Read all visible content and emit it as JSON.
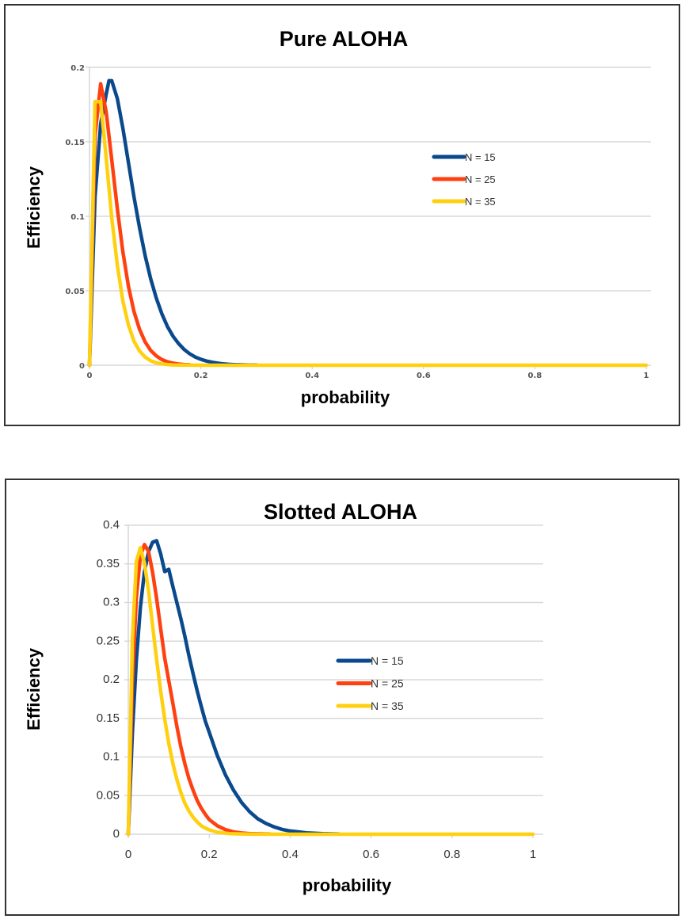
{
  "colors": {
    "n15": "#0a4a8c",
    "n25": "#ff4010",
    "n35": "#ffd010",
    "grid": "#d8d8d8"
  },
  "chart_data": [
    {
      "type": "line",
      "title": "Pure ALOHA",
      "xlabel": "probability",
      "ylabel": "Efficiency",
      "xlim": [
        0,
        1
      ],
      "ylim": [
        0,
        0.2
      ],
      "xticks": [
        "0",
        "0.2",
        "0.4",
        "0.6",
        "0.8",
        "1"
      ],
      "xtick_values": [
        0,
        0.2,
        0.4,
        0.6,
        0.8,
        1
      ],
      "yticks": [
        "0",
        "0.05",
        "0.1",
        "0.15",
        "0.2"
      ],
      "ytick_values": [
        0,
        0.05,
        0.1,
        0.15,
        0.2
      ],
      "grid": true,
      "legend": "right",
      "series": [
        {
          "name": "N = 15",
          "color_key": "n15",
          "x": [
            0,
            0.01,
            0.02,
            0.03,
            0.035,
            0.04,
            0.05,
            0.06,
            0.07,
            0.08,
            0.09,
            0.1,
            0.11,
            0.12,
            0.13,
            0.14,
            0.15,
            0.16,
            0.17,
            0.18,
            0.19,
            0.2,
            0.21,
            0.22,
            0.23,
            0.24,
            0.25,
            0.26,
            0.27,
            0.28,
            0.29,
            0.3
          ],
          "y": [
            0,
            0.113,
            0.162,
            0.182,
            0.191,
            0.191,
            0.179,
            0.159,
            0.136,
            0.113,
            0.092,
            0.0735,
            0.058,
            0.045,
            0.0345,
            0.026,
            0.0195,
            0.0145,
            0.0106,
            0.0077,
            0.0055,
            0.004,
            0.0028,
            0.002,
            0.0014,
            0.0009,
            0.0006,
            0.0004,
            0.0003,
            0.0002,
            0.0001,
            0.0001
          ]
        },
        {
          "name": "N = 25",
          "color_key": "n25",
          "x": [
            0,
            0.01,
            0.02,
            0.03,
            0.04,
            0.05,
            0.06,
            0.07,
            0.08,
            0.09,
            0.1,
            0.11,
            0.12,
            0.13,
            0.14,
            0.15,
            0.16,
            0.17,
            0.18
          ],
          "y": [
            0,
            0.154,
            0.189,
            0.17,
            0.138,
            0.105,
            0.076,
            0.053,
            0.036,
            0.024,
            0.0156,
            0.0099,
            0.0062,
            0.0038,
            0.0023,
            0.0014,
            0.0008,
            0.0005,
            0.0003
          ]
        },
        {
          "name": "N = 35",
          "color_key": "n35",
          "x": [
            0,
            0.01,
            0.02,
            0.03,
            0.04,
            0.05,
            0.06,
            0.07,
            0.08,
            0.09,
            0.1,
            0.11,
            0.12,
            0.13,
            0.14,
            0.15,
            0.2,
            0.4,
            0.6,
            0.8,
            1
          ],
          "y": [
            0,
            0.177,
            0.177,
            0.139,
            0.099,
            0.067,
            0.043,
            0.027,
            0.016,
            0.0095,
            0.0054,
            0.003,
            0.0016,
            0.0009,
            0.0005,
            0.0002,
            0,
            0,
            0,
            0,
            0
          ]
        }
      ]
    },
    {
      "type": "line",
      "title": "Slotted ALOHA",
      "xlabel": "probability",
      "ylabel": "Efficiency",
      "xlim": [
        0,
        1
      ],
      "ylim": [
        0,
        0.4
      ],
      "xticks": [
        "0",
        "0.2",
        "0.4",
        "0.6",
        "0.8",
        "1"
      ],
      "xtick_values": [
        0,
        0.2,
        0.4,
        0.6,
        0.8,
        1
      ],
      "yticks": [
        "0",
        "0.05",
        "0.1",
        "0.15",
        "0.2",
        "0.25",
        "0.3",
        "0.35",
        "0.4"
      ],
      "ytick_values": [
        0,
        0.05,
        0.1,
        0.15,
        0.2,
        0.25,
        0.3,
        0.35,
        0.4
      ],
      "grid": true,
      "legend": "right",
      "series": [
        {
          "name": "N = 15",
          "color_key": "n15",
          "x": [
            0,
            0.01,
            0.02,
            0.03,
            0.04,
            0.05,
            0.06,
            0.07,
            0.08,
            0.09,
            0.1,
            0.11,
            0.12,
            0.13,
            0.14,
            0.15,
            0.16,
            0.17,
            0.18,
            0.19,
            0.2,
            0.22,
            0.24,
            0.26,
            0.28,
            0.3,
            0.32,
            0.34,
            0.36,
            0.38,
            0.4,
            0.44,
            0.48,
            0.52
          ],
          "y": [
            0,
            0.13,
            0.226,
            0.294,
            0.34,
            0.366,
            0.378,
            0.38,
            0.363,
            0.34,
            0.343,
            0.321,
            0.3,
            0.279,
            0.256,
            0.231,
            0.208,
            0.186,
            0.166,
            0.147,
            0.132,
            0.102,
            0.077,
            0.057,
            0.041,
            0.029,
            0.02,
            0.014,
            0.0095,
            0.0063,
            0.0042,
            0.0018,
            0.0007,
            0.0003
          ]
        },
        {
          "name": "N = 25",
          "color_key": "n25",
          "x": [
            0,
            0.01,
            0.02,
            0.03,
            0.04,
            0.05,
            0.06,
            0.07,
            0.08,
            0.09,
            0.1,
            0.11,
            0.12,
            0.13,
            0.14,
            0.15,
            0.16,
            0.17,
            0.18,
            0.19,
            0.2,
            0.22,
            0.24,
            0.26,
            0.28,
            0.3,
            0.35
          ],
          "y": [
            0,
            0.196,
            0.307,
            0.36,
            0.375,
            0.366,
            0.339,
            0.305,
            0.266,
            0.228,
            0.199,
            0.17,
            0.14,
            0.113,
            0.091,
            0.072,
            0.057,
            0.044,
            0.034,
            0.026,
            0.019,
            0.011,
            0.006,
            0.003,
            0.0016,
            0.0008,
            0.0002
          ]
        },
        {
          "name": "N = 35",
          "color_key": "n35",
          "x": [
            0,
            0.01,
            0.02,
            0.03,
            0.04,
            0.05,
            0.06,
            0.07,
            0.08,
            0.09,
            0.1,
            0.11,
            0.12,
            0.13,
            0.14,
            0.15,
            0.16,
            0.17,
            0.18,
            0.19,
            0.2,
            0.22,
            0.25,
            0.3,
            0.4,
            0.6,
            0.8,
            1
          ],
          "y": [
            0,
            0.25,
            0.353,
            0.371,
            0.351,
            0.315,
            0.27,
            0.226,
            0.185,
            0.149,
            0.118,
            0.092,
            0.071,
            0.054,
            0.04,
            0.03,
            0.022,
            0.016,
            0.011,
            0.008,
            0.0056,
            0.0026,
            0.0008,
            0.0001,
            0,
            0,
            0,
            0
          ]
        }
      ]
    }
  ]
}
